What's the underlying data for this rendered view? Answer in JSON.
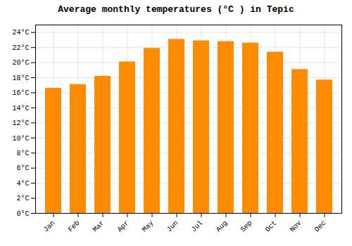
{
  "chart_data": {
    "type": "bar",
    "title": "Average monthly temperatures (°C ) in Tepic",
    "categories": [
      "Jan",
      "Feb",
      "Mar",
      "Apr",
      "May",
      "Jun",
      "Jul",
      "Aug",
      "Sep",
      "Oct",
      "Nov",
      "Dec"
    ],
    "values": [
      16.6,
      17.1,
      18.2,
      20.1,
      21.9,
      23.1,
      22.9,
      22.8,
      22.6,
      21.4,
      19.1,
      17.7
    ],
    "color": "#FF8C00",
    "ylim": [
      0,
      25
    ],
    "yticks": [
      {
        "value": 0,
        "label": "0°C"
      },
      {
        "value": 2,
        "label": "2°C"
      },
      {
        "value": 4,
        "label": "4°C"
      },
      {
        "value": 6,
        "label": "6°C"
      },
      {
        "value": 8,
        "label": "8°C"
      },
      {
        "value": 10,
        "label": "10°C"
      },
      {
        "value": 12,
        "label": "12°C"
      },
      {
        "value": 14,
        "label": "14°C"
      },
      {
        "value": 16,
        "label": "16°C"
      },
      {
        "value": 18,
        "label": "18°C"
      },
      {
        "value": 20,
        "label": "20°C"
      },
      {
        "value": 22,
        "label": "22°C"
      },
      {
        "value": 24,
        "label": "24°C"
      }
    ],
    "grid": true
  }
}
